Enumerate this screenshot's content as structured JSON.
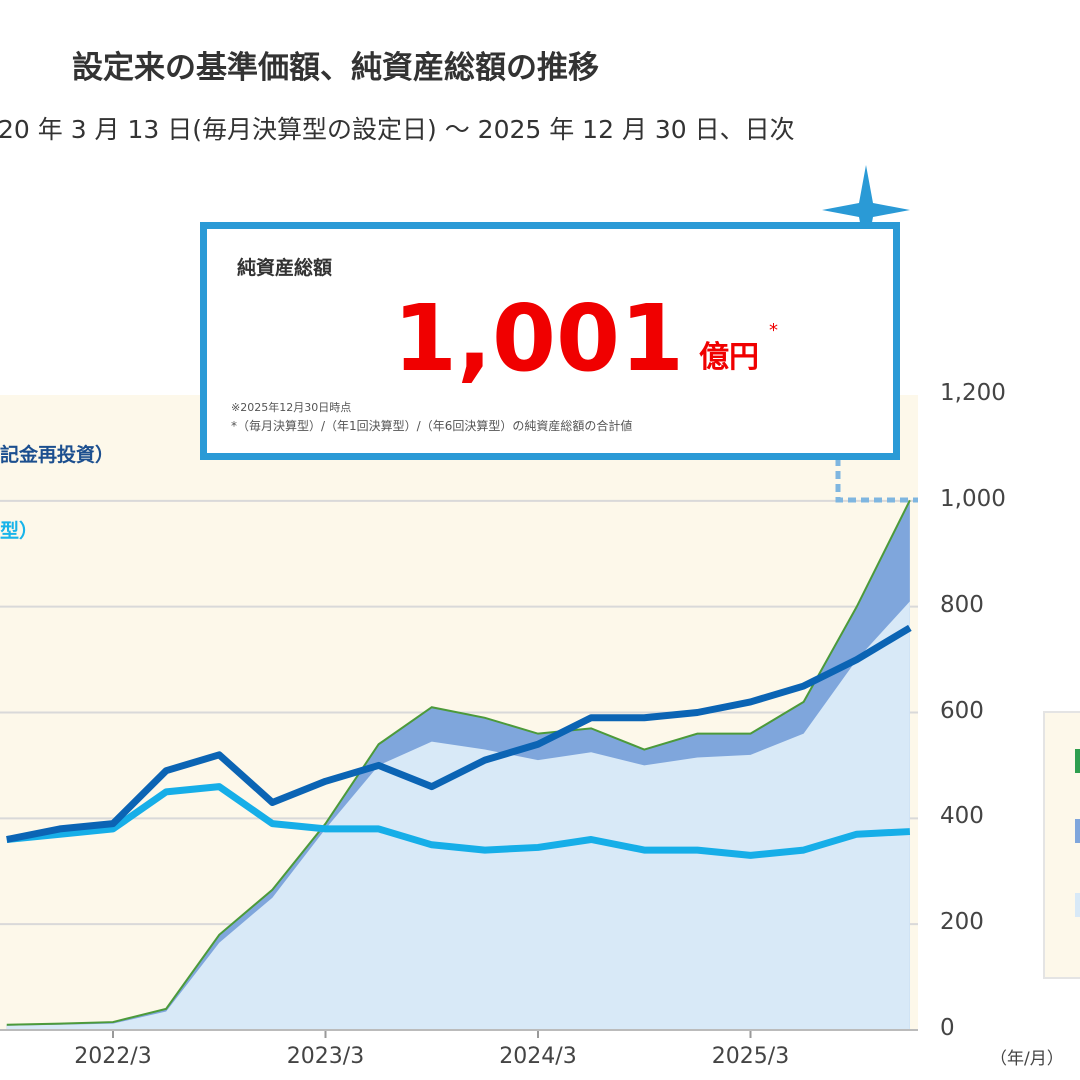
{
  "title": "設定来の基準価額、純資産総額の推移",
  "subtitle": "20 年 3 月 13 日(毎月決算型の設定日) ～ 2025 年 12 月 30 日、日次",
  "callout": {
    "label": "純資産総額",
    "value": "1,001",
    "unit": "億円",
    "asterisk": "*",
    "note1": "※2025年12月30日時点",
    "note2": "*（毎月決算型）/（年1回決算型）/（年6回決算型）の純資産総額の合計値"
  },
  "legend_fragments": {
    "line1": "記金再投資）",
    "line2": "型）"
  },
  "legend_colors": [
    "#2e9e4f",
    "#7fa6dc",
    "#d8e9f7"
  ],
  "colors": {
    "accent": "#2a9ad6",
    "value": "#f00000",
    "plot_bg": "#fdf8ea",
    "dark_line": "#0b64b4",
    "light_line": "#16aee8",
    "band": "#7fa6dc",
    "area": "#d8e9f7",
    "total_line": "#4c9a3a"
  },
  "chart_data": {
    "type": "area+line",
    "y_right": {
      "ticks": [
        "0",
        "200",
        "400",
        "600",
        "800",
        "1,000",
        "1,200"
      ],
      "range": [
        0,
        1200
      ]
    },
    "x_ticks": [
      "2022/3",
      "2023/3",
      "2024/3",
      "2025/3"
    ],
    "x_unit": "（年/月）",
    "grid": true,
    "dates": [
      "2021/9",
      "2021/12",
      "2022/3",
      "2022/6",
      "2022/9",
      "2022/12",
      "2023/3",
      "2023/6",
      "2023/9",
      "2023/12",
      "2024/3",
      "2024/6",
      "2024/9",
      "2024/12",
      "2025/3",
      "2025/6",
      "2025/9",
      "2025/12"
    ],
    "series": [
      {
        "key": "total",
        "values": [
          10,
          12,
          15,
          40,
          180,
          265,
          390,
          540,
          610,
          590,
          560,
          570,
          530,
          560,
          560,
          620,
          800,
          1001
        ]
      },
      {
        "key": "area_base",
        "values": [
          8,
          10,
          12,
          35,
          165,
          250,
          380,
          500,
          545,
          530,
          510,
          525,
          500,
          515,
          520,
          560,
          700,
          810
        ]
      },
      {
        "key": "dark_line",
        "values": [
          360,
          380,
          390,
          490,
          520,
          430,
          470,
          500,
          460,
          510,
          540,
          590,
          590,
          600,
          620,
          650,
          700,
          760
        ]
      },
      {
        "key": "light_line",
        "values": [
          360,
          370,
          380,
          450,
          460,
          390,
          380,
          380,
          350,
          340,
          345,
          360,
          340,
          340,
          330,
          340,
          370,
          375
        ]
      }
    ]
  }
}
